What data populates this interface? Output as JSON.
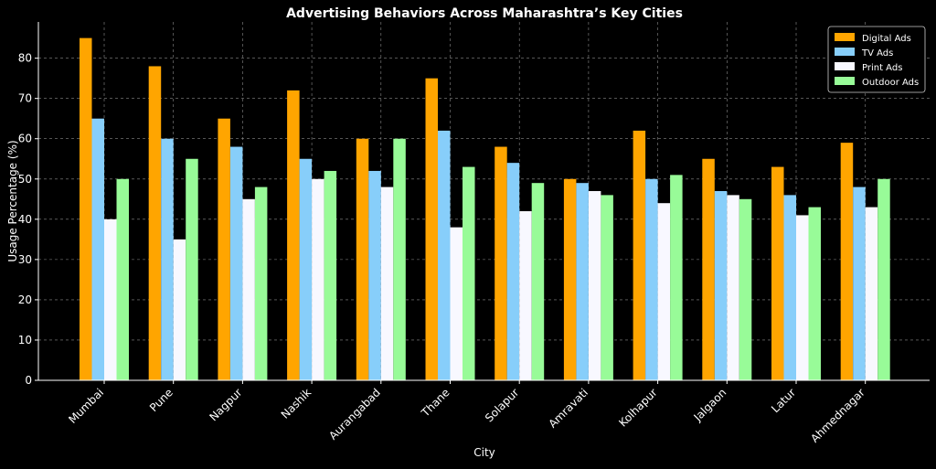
{
  "chart_data": {
    "type": "bar",
    "title": "Advertising Behaviors Across Maharashtra’s Key Cities",
    "xlabel": "City",
    "ylabel": "Usage Percentage (%)",
    "categories": [
      "Mumbai",
      "Pune",
      "Nagpur",
      "Nashik",
      "Aurangabad",
      "Thane",
      "Solapur",
      "Amravati",
      "Kolhapur",
      "Jalgaon",
      "Latur",
      "Ahmednagar"
    ],
    "series": [
      {
        "name": "Digital Ads",
        "color": "#FFA500",
        "values": [
          85,
          78,
          65,
          72,
          60,
          75,
          58,
          50,
          62,
          55,
          53,
          59
        ]
      },
      {
        "name": "TV Ads",
        "color": "#87CEFA",
        "values": [
          65,
          60,
          58,
          55,
          52,
          62,
          54,
          49,
          50,
          47,
          46,
          48
        ]
      },
      {
        "name": "Print Ads",
        "color": "#F8F8FF",
        "values": [
          40,
          35,
          45,
          50,
          48,
          38,
          42,
          47,
          44,
          46,
          41,
          43
        ]
      },
      {
        "name": "Outdoor Ads",
        "color": "#98FB98",
        "values": [
          50,
          55,
          48,
          52,
          60,
          53,
          49,
          46,
          51,
          45,
          43,
          50
        ]
      }
    ],
    "yticks": [
      0,
      10,
      20,
      30,
      40,
      50,
      60,
      70,
      80
    ],
    "ylim": [
      0,
      89
    ],
    "grid": true,
    "legend_position": "top-right",
    "background": "#000000"
  }
}
